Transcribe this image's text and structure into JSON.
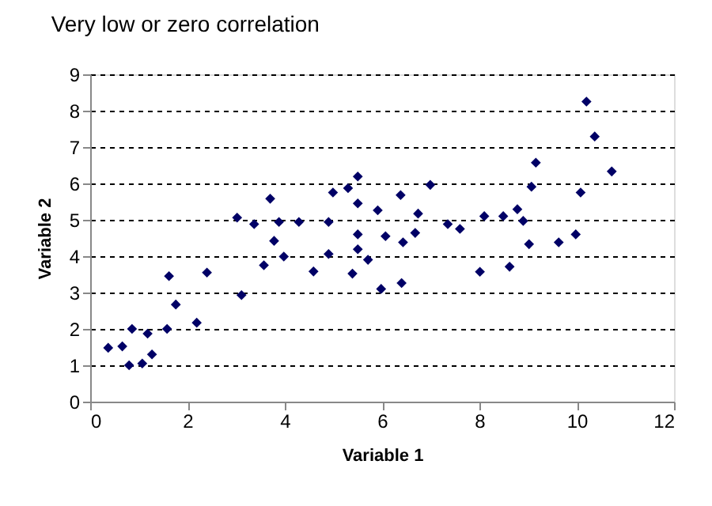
{
  "chart_data": {
    "type": "scatter",
    "title": "Very low or zero correlation",
    "xlabel": "Variable 1",
    "ylabel": "Variable 2",
    "x": [
      0.37,
      0.66,
      0.8,
      0.86,
      1.07,
      1.18,
      1.27,
      1.62,
      1.58,
      1.76,
      2.19,
      2.4,
      3.02,
      3.11,
      3.37,
      3.57,
      3.7,
      3.78,
      3.88,
      3.98,
      4.29,
      4.59,
      4.9,
      4.9,
      4.99,
      5.3,
      5.39,
      5.5,
      5.5,
      5.5,
      5.5,
      5.71,
      5.91,
      5.98,
      6.07,
      6.38,
      6.4,
      6.43,
      6.68,
      6.74,
      6.99,
      7.35,
      7.6,
      8.01,
      8.1,
      8.49,
      8.62,
      8.78,
      8.9,
      9.02,
      9.07,
      9.16,
      9.63,
      9.98,
      10.08,
      10.2,
      10.37,
      10.72
    ],
    "series": [
      {
        "color": "#000066",
        "values": [
          1.48,
          1.52,
          1.0,
          2.0,
          1.05,
          1.87,
          1.3,
          3.45,
          2.0,
          2.67,
          2.17,
          3.55,
          5.06,
          2.93,
          4.88,
          3.75,
          5.58,
          4.42,
          4.94,
          3.99,
          4.94,
          3.58,
          4.94,
          4.06,
          5.75,
          5.87,
          3.52,
          6.19,
          5.45,
          4.6,
          4.19,
          3.9,
          5.26,
          3.1,
          4.55,
          5.68,
          3.26,
          4.38,
          4.64,
          5.17,
          5.96,
          4.88,
          4.75,
          3.57,
          5.1,
          5.1,
          3.71,
          5.29,
          4.97,
          4.33,
          5.91,
          6.57,
          4.38,
          4.6,
          5.75,
          8.25,
          7.29,
          6.33
        ]
      }
    ],
    "xlim": [
      0,
      12
    ],
    "xticks": [
      0,
      2,
      4,
      6,
      8,
      10,
      12
    ],
    "ylim": [
      0,
      9
    ],
    "yticks": [
      0,
      1,
      2,
      3,
      4,
      5,
      6,
      7,
      8,
      9
    ],
    "grid": "y",
    "marker": "diamond"
  }
}
